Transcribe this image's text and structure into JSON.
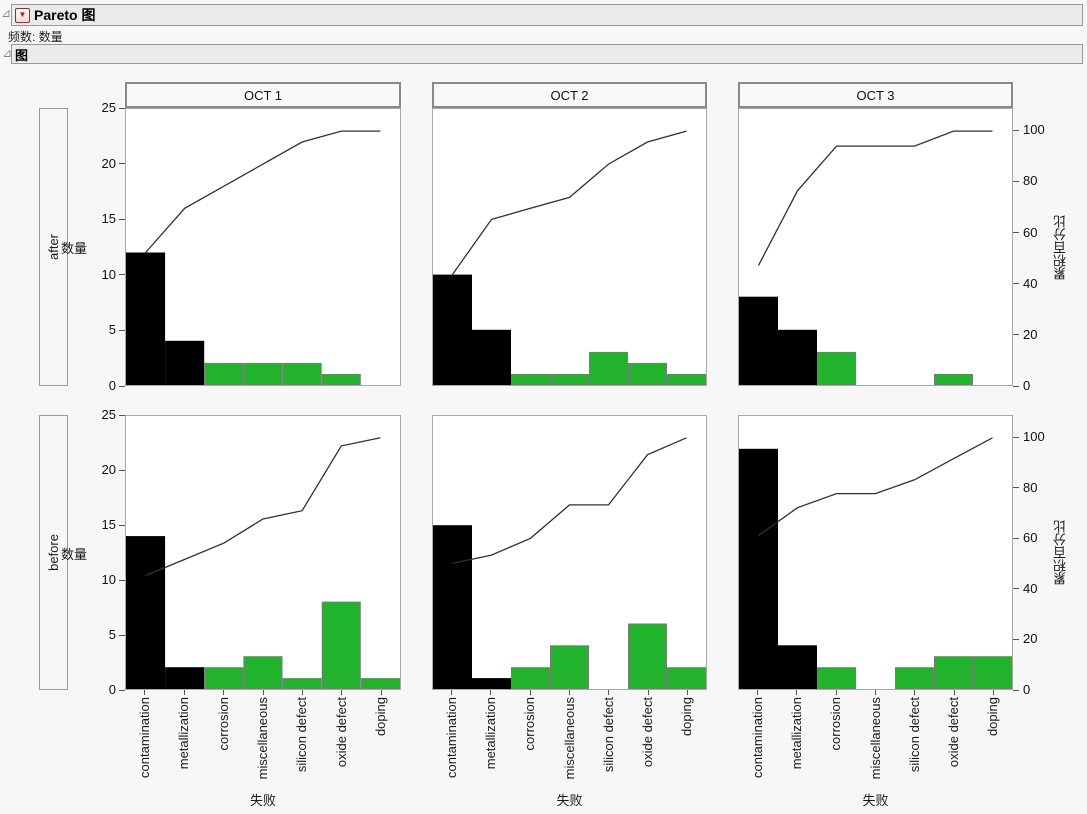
{
  "window": {
    "title": "Pareto 图",
    "subtitle": "频数: 数量",
    "section_title": "图",
    "disclosure_icon": "⊿",
    "menu_triangle_icon": "▼"
  },
  "chart_data": {
    "type": "bar",
    "subtype": "pareto-with-cumulative-percent-line",
    "grid": {
      "rows": [
        "after",
        "before"
      ],
      "columns": [
        "OCT 1",
        "OCT 2",
        "OCT 3"
      ]
    },
    "categories": [
      "contamination",
      "metallization",
      "corrosion",
      "miscellaneous",
      "silicon defect",
      "oxide defect",
      "doping"
    ],
    "xlabel": "失败",
    "ylabel_left": "数量",
    "ylabel_right": "累积百分比",
    "ylim_left": [
      0,
      25
    ],
    "ylim_right": [
      0,
      100
    ],
    "left_ticks": [
      0,
      5,
      10,
      15,
      20,
      25
    ],
    "right_ticks": [
      0,
      20,
      40,
      60,
      80,
      100
    ],
    "right_axis_100_at_count": 23,
    "grid_lines": "off",
    "bar_colors": [
      "#000000",
      "#000000",
      "#22b32c",
      "#22b32c",
      "#22b32c",
      "#22b32c",
      "#22b32c"
    ],
    "bar_border_color": "#7a7a7a",
    "line_color": "#303030",
    "cells": [
      {
        "row": "after",
        "col": "OCT 1",
        "values": [
          12,
          4,
          2,
          2,
          2,
          1,
          0
        ],
        "total": 23,
        "cumulative_pct": [
          52.2,
          69.6,
          78.3,
          87.0,
          95.7,
          100,
          100
        ]
      },
      {
        "row": "after",
        "col": "OCT 2",
        "values": [
          10,
          5,
          1,
          1,
          3,
          2,
          1
        ],
        "total": 23,
        "cumulative_pct": [
          43.5,
          65.2,
          69.6,
          73.9,
          87.0,
          95.7,
          100
        ]
      },
      {
        "row": "after",
        "col": "OCT 3",
        "values": [
          8,
          5,
          3,
          0,
          0,
          1,
          0
        ],
        "total": 17,
        "cumulative_pct": [
          47.1,
          76.5,
          94.1,
          94.1,
          94.1,
          100,
          100
        ]
      },
      {
        "row": "before",
        "col": "OCT 1",
        "values": [
          14,
          2,
          2,
          3,
          1,
          8,
          1
        ],
        "total": 31,
        "cumulative_pct": [
          45.2,
          51.6,
          58.1,
          67.7,
          71.0,
          96.8,
          100
        ]
      },
      {
        "row": "before",
        "col": "OCT 2",
        "values": [
          15,
          1,
          2,
          4,
          0,
          6,
          2
        ],
        "total": 30,
        "cumulative_pct": [
          50.0,
          53.3,
          60.0,
          73.3,
          73.3,
          93.3,
          100
        ]
      },
      {
        "row": "before",
        "col": "OCT 3",
        "values": [
          22,
          4,
          2,
          0,
          2,
          3,
          3
        ],
        "total": 36,
        "cumulative_pct": [
          61.1,
          72.2,
          77.8,
          77.8,
          83.3,
          91.7,
          100
        ]
      }
    ]
  }
}
